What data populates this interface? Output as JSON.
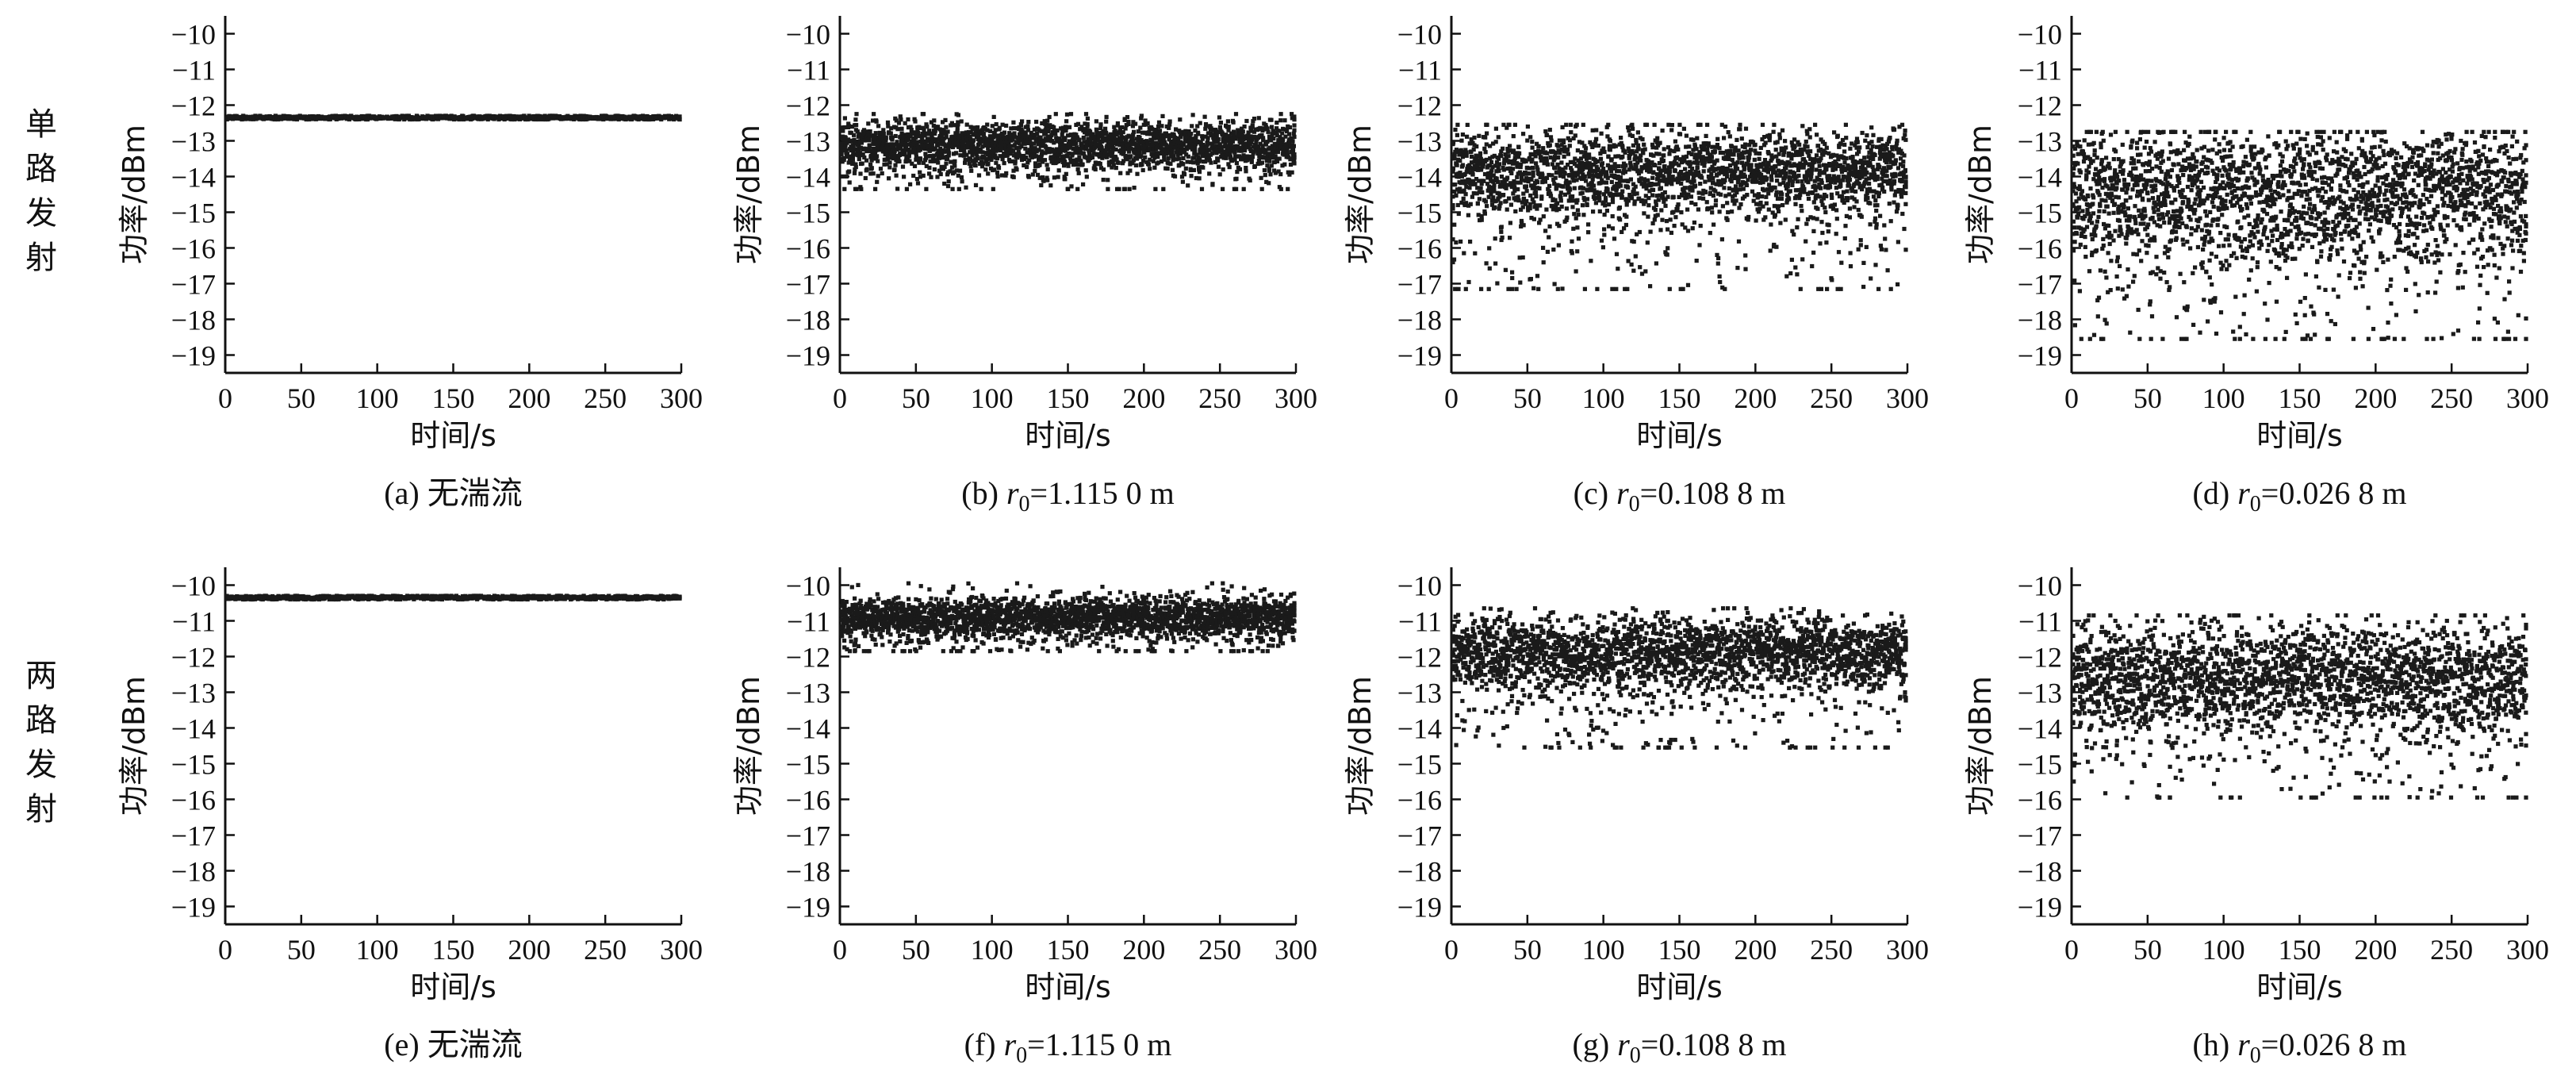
{
  "row_labels": [
    "单路发射",
    "两路发射"
  ],
  "chart_data": [
    {
      "type": "scatter",
      "caption": "(a) 无湍流",
      "xlabel": "时间/s",
      "ylabel": "功率/dBm",
      "xlim": [
        0,
        300
      ],
      "ylim": [
        -19.5,
        -9.5
      ],
      "xticks": [
        0,
        50,
        100,
        150,
        200,
        250,
        300
      ],
      "yticks": [
        -10,
        -11,
        -12,
        -13,
        -14,
        -15,
        -16,
        -17,
        -18,
        -19
      ],
      "grid": false,
      "series": [
        {
          "mean": -12.35,
          "core_std": 0.03,
          "tail_low": 0,
          "tail_high": 0
        }
      ]
    },
    {
      "type": "scatter",
      "caption": "(b) r0=1.115 0 m",
      "caption_parts": {
        "prefix": "(b) ",
        "var": "r",
        "sub": "0",
        "value": "=1.115 0 m"
      },
      "xlabel": "时间/s",
      "ylabel": "功率/dBm",
      "xlim": [
        0,
        300
      ],
      "ylim": [
        -19.5,
        -9.5
      ],
      "xticks": [
        0,
        50,
        100,
        150,
        200,
        250,
        300
      ],
      "yticks": [
        -10,
        -11,
        -12,
        -13,
        -14,
        -15,
        -16,
        -17,
        -18,
        -19
      ],
      "grid": false,
      "series": [
        {
          "mean": -13.1,
          "core_std": 0.3,
          "tail_low": 1.2,
          "tail_high": 0.8
        }
      ]
    },
    {
      "type": "scatter",
      "caption": "(c) r0=0.108 8 m",
      "caption_parts": {
        "prefix": "(c) ",
        "var": "r",
        "sub": "0",
        "value": "=0.108 8 m"
      },
      "xlabel": "时间/s",
      "ylabel": "功率/dBm",
      "xlim": [
        0,
        300
      ],
      "ylim": [
        -19.5,
        -9.5
      ],
      "xticks": [
        0,
        50,
        100,
        150,
        200,
        250,
        300
      ],
      "yticks": [
        -10,
        -11,
        -12,
        -13,
        -14,
        -15,
        -16,
        -17,
        -18,
        -19
      ],
      "grid": false,
      "series": [
        {
          "mean": -13.9,
          "core_std": 0.55,
          "tail_low": 3.2,
          "tail_high": 1.3
        }
      ]
    },
    {
      "type": "scatter",
      "caption": "(d) r0=0.026 8 m",
      "caption_parts": {
        "prefix": "(d) ",
        "var": "r",
        "sub": "0",
        "value": "=0.026 8 m"
      },
      "xlabel": "时间/s",
      "ylabel": "功率/dBm",
      "xlim": [
        0,
        300
      ],
      "ylim": [
        -19.5,
        -9.5
      ],
      "xticks": [
        0,
        50,
        100,
        150,
        200,
        250,
        300
      ],
      "yticks": [
        -10,
        -11,
        -12,
        -13,
        -14,
        -15,
        -16,
        -17,
        -18,
        -19
      ],
      "grid": false,
      "series": [
        {
          "mean": -14.5,
          "core_std": 0.85,
          "tail_low": 4.0,
          "tail_high": 1.7
        }
      ]
    },
    {
      "type": "scatter",
      "caption": "(e) 无湍流",
      "xlabel": "时间/s",
      "ylabel": "功率/dBm",
      "xlim": [
        0,
        300
      ],
      "ylim": [
        -19.5,
        -9.5
      ],
      "xticks": [
        0,
        50,
        100,
        150,
        200,
        250,
        300
      ],
      "yticks": [
        -10,
        -11,
        -12,
        -13,
        -14,
        -15,
        -16,
        -17,
        -18,
        -19
      ],
      "grid": false,
      "series": [
        {
          "mean": -10.35,
          "core_std": 0.03,
          "tail_low": 0,
          "tail_high": 0
        }
      ]
    },
    {
      "type": "scatter",
      "caption": "(f) r0=1.115 0 m",
      "caption_parts": {
        "prefix": "(f) ",
        "var": "r",
        "sub": "0",
        "value": "=1.115 0 m"
      },
      "xlabel": "时间/s",
      "ylabel": "功率/dBm",
      "xlim": [
        0,
        300
      ],
      "ylim": [
        -19.5,
        -9.5
      ],
      "xticks": [
        0,
        50,
        100,
        150,
        200,
        250,
        300
      ],
      "yticks": [
        -10,
        -11,
        -12,
        -13,
        -14,
        -15,
        -16,
        -17,
        -18,
        -19
      ],
      "grid": false,
      "series": [
        {
          "mean": -10.9,
          "core_std": 0.25,
          "tail_low": 0.9,
          "tail_high": 0.9
        }
      ]
    },
    {
      "type": "scatter",
      "caption": "(g) r0=0.108 8 m",
      "caption_parts": {
        "prefix": "(g) ",
        "var": "r",
        "sub": "0",
        "value": "=0.108 8 m"
      },
      "xlabel": "时间/s",
      "ylabel": "功率/dBm",
      "xlim": [
        0,
        300
      ],
      "ylim": [
        -19.5,
        -9.5
      ],
      "xticks": [
        0,
        50,
        100,
        150,
        200,
        250,
        300
      ],
      "yticks": [
        -10,
        -11,
        -12,
        -13,
        -14,
        -15,
        -16,
        -17,
        -18,
        -19
      ],
      "grid": false,
      "series": [
        {
          "mean": -11.9,
          "core_std": 0.45,
          "tail_low": 2.6,
          "tail_high": 1.2
        }
      ]
    },
    {
      "type": "scatter",
      "caption": "(h) r0=0.026 8 m",
      "caption_parts": {
        "prefix": "(h) ",
        "var": "r",
        "sub": "0",
        "value": "=0.026 8 m"
      },
      "xlabel": "时间/s",
      "ylabel": "功率/dBm",
      "xlim": [
        0,
        300
      ],
      "ylim": [
        -19.5,
        -9.5
      ],
      "xticks": [
        0,
        50,
        100,
        150,
        200,
        250,
        300
      ],
      "yticks": [
        -10,
        -11,
        -12,
        -13,
        -14,
        -15,
        -16,
        -17,
        -18,
        -19
      ],
      "grid": false,
      "series": [
        {
          "mean": -12.6,
          "core_std": 0.7,
          "tail_low": 3.3,
          "tail_high": 1.7
        }
      ]
    }
  ]
}
